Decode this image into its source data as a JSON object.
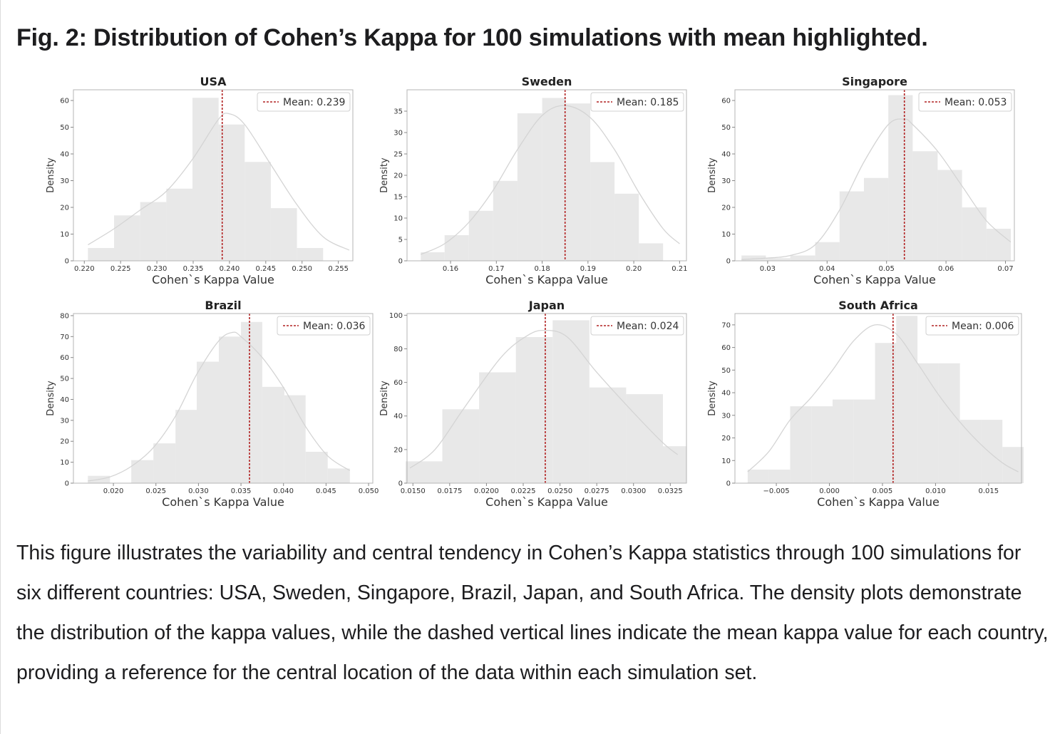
{
  "figure": {
    "title": "Fig. 2: Distribution of Cohen’s Kappa for 100 simulations with mean highlighted.",
    "caption": "This figure illustrates the variability and central tendency in Cohen’s Kappa statistics through 100 simulations for six different countries: USA, Sweden, Singapore, Brazil, Japan, and South Africa. The density plots demonstrate the distribution of the kappa values, while the dashed vertical lines indicate the mean kappa value for each country, providing a reference for the central location of the data within each simulation set."
  },
  "colors": {
    "bar": "#e8e8e8",
    "curve": "#d4d4d4",
    "mean": "#b22222",
    "axis": "#888888",
    "text": "#333333"
  },
  "chart_data": [
    {
      "type": "bar",
      "title": "USA",
      "xlabel": "Cohen`s Kappa Value",
      "ylabel": "Density",
      "xlim": [
        0.2185,
        0.257
      ],
      "ylim": [
        0,
        64
      ],
      "xticks": [
        0.22,
        0.225,
        0.23,
        0.235,
        0.24,
        0.245,
        0.25,
        0.255
      ],
      "xtick_labels": [
        "0.220",
        "0.225",
        "0.230",
        "0.235",
        "0.240",
        "0.245",
        "0.250",
        "0.255"
      ],
      "yticks": [
        0,
        10,
        20,
        30,
        40,
        50,
        60
      ],
      "ytick_labels": [
        "0",
        "10",
        "20",
        "30",
        "40",
        "50",
        "60"
      ],
      "bin_edges": [
        0.2205,
        0.2241,
        0.2277,
        0.2313,
        0.2349,
        0.2385,
        0.2421,
        0.2457,
        0.2493,
        0.2529,
        0.2565
      ],
      "values": [
        4.8,
        17,
        22,
        27,
        61,
        51,
        37,
        19.7,
        4.8,
        0
      ],
      "kde": [
        [
          0.2205,
          6
        ],
        [
          0.2241,
          12
        ],
        [
          0.2277,
          19
        ],
        [
          0.2313,
          26
        ],
        [
          0.2349,
          38
        ],
        [
          0.2385,
          53
        ],
        [
          0.24,
          55
        ],
        [
          0.2421,
          51
        ],
        [
          0.2457,
          36
        ],
        [
          0.2493,
          21
        ],
        [
          0.2529,
          9
        ],
        [
          0.2565,
          4
        ]
      ],
      "mean": 0.239,
      "legend": "Mean: 0.239"
    },
    {
      "type": "bar",
      "title": "Sweden",
      "xlabel": "Cohen`s Kappa Value",
      "ylabel": "Density",
      "xlim": [
        0.1505,
        0.2115
      ],
      "ylim": [
        0,
        40
      ],
      "xticks": [
        0.16,
        0.17,
        0.18,
        0.19,
        0.2,
        0.21
      ],
      "xtick_labels": [
        "0.16",
        "0.17",
        "0.18",
        "0.19",
        "0.20",
        "0.21"
      ],
      "yticks": [
        0,
        5,
        10,
        15,
        20,
        25,
        30,
        35
      ],
      "ytick_labels": [
        "0",
        "5",
        "10",
        "15",
        "20",
        "25",
        "30",
        "35"
      ],
      "bin_edges": [
        0.1535,
        0.1587,
        0.164,
        0.1693,
        0.1746,
        0.18,
        0.1852,
        0.1905,
        0.1958,
        0.2011,
        0.2064
      ],
      "values": [
        2,
        6,
        11.7,
        18.7,
        34.5,
        38.1,
        36.8,
        23.1,
        15.7,
        4.1
      ],
      "kde": [
        [
          0.1535,
          1.5
        ],
        [
          0.1587,
          4
        ],
        [
          0.164,
          9
        ],
        [
          0.1693,
          16.5
        ],
        [
          0.1746,
          26
        ],
        [
          0.18,
          34
        ],
        [
          0.185,
          36.3
        ],
        [
          0.1905,
          33.5
        ],
        [
          0.1958,
          26
        ],
        [
          0.2011,
          16
        ],
        [
          0.2064,
          7.5
        ],
        [
          0.21,
          4
        ]
      ],
      "mean": 0.185,
      "legend": "Mean: 0.185"
    },
    {
      "type": "bar",
      "title": "Singapore",
      "xlabel": "Cohen`s Kappa Value",
      "ylabel": "Density",
      "xlim": [
        0.0245,
        0.0715
      ],
      "ylim": [
        0,
        64
      ],
      "xticks": [
        0.03,
        0.04,
        0.05,
        0.06,
        0.07
      ],
      "xtick_labels": [
        "0.03",
        "0.04",
        "0.05",
        "0.06",
        "0.07"
      ],
      "yticks": [
        0,
        10,
        20,
        30,
        40,
        50,
        60
      ],
      "ytick_labels": [
        "0",
        "10",
        "20",
        "30",
        "40",
        "50",
        "60"
      ],
      "bin_edges": [
        0.0256,
        0.0297,
        0.0338,
        0.038,
        0.0421,
        0.0462,
        0.0503,
        0.0544,
        0.0586,
        0.0627,
        0.0668,
        0.0709
      ],
      "values": [
        2,
        1,
        2,
        7,
        26,
        31,
        62,
        41,
        34,
        20,
        12
      ],
      "kde": [
        [
          0.0256,
          0.5
        ],
        [
          0.0297,
          1
        ],
        [
          0.0338,
          2
        ],
        [
          0.038,
          6
        ],
        [
          0.0421,
          19
        ],
        [
          0.0462,
          37
        ],
        [
          0.0503,
          51
        ],
        [
          0.053,
          53
        ],
        [
          0.0544,
          51
        ],
        [
          0.0586,
          41
        ],
        [
          0.0627,
          28
        ],
        [
          0.0668,
          15
        ],
        [
          0.0709,
          7
        ]
      ],
      "mean": 0.053,
      "legend": "Mean: 0.053"
    },
    {
      "type": "bar",
      "title": "Brazil",
      "xlabel": "Cohen`s Kappa Value",
      "ylabel": "Density",
      "xlim": [
        0.0153,
        0.0505
      ],
      "ylim": [
        0,
        81
      ],
      "xticks": [
        0.02,
        0.025,
        0.03,
        0.035,
        0.04,
        0.045,
        0.05
      ],
      "xtick_labels": [
        "0.020",
        "0.025",
        "0.030",
        "0.035",
        "0.040",
        "0.045",
        "0.050"
      ],
      "yticks": [
        0,
        10,
        20,
        30,
        40,
        50,
        60,
        70,
        80
      ],
      "ytick_labels": [
        "0",
        "10",
        "20",
        "30",
        "40",
        "50",
        "60",
        "70",
        "80"
      ],
      "bin_edges": [
        0.017,
        0.0196,
        0.0221,
        0.0247,
        0.0273,
        0.0298,
        0.0324,
        0.035,
        0.0375,
        0.0401,
        0.0426,
        0.0452,
        0.0478
      ],
      "values": [
        3.5,
        0,
        11,
        19,
        35,
        58,
        70,
        77,
        46,
        42,
        15,
        7
      ],
      "kde": [
        [
          0.017,
          1
        ],
        [
          0.0196,
          3
        ],
        [
          0.0221,
          8
        ],
        [
          0.0247,
          17
        ],
        [
          0.0273,
          32
        ],
        [
          0.0298,
          52
        ],
        [
          0.0324,
          68
        ],
        [
          0.034,
          72
        ],
        [
          0.035,
          70
        ],
        [
          0.0375,
          60
        ],
        [
          0.0401,
          45
        ],
        [
          0.0426,
          27
        ],
        [
          0.0452,
          13
        ],
        [
          0.0478,
          6
        ]
      ],
      "mean": 0.036,
      "legend": "Mean: 0.036"
    },
    {
      "type": "bar",
      "title": "Japan",
      "xlabel": "Cohen`s Kappa Value",
      "ylabel": "Density",
      "xlim": [
        0.0146,
        0.0336
      ],
      "ylim": [
        0,
        101
      ],
      "xticks": [
        0.015,
        0.0175,
        0.02,
        0.0225,
        0.025,
        0.0275,
        0.03,
        0.0325
      ],
      "xtick_labels": [
        "0.0150",
        "0.0175",
        "0.0200",
        "0.0225",
        "0.0250",
        "0.0275",
        "0.0300",
        "0.0325"
      ],
      "yticks": [
        0,
        20,
        40,
        60,
        80,
        100
      ],
      "ytick_labels": [
        "0",
        "20",
        "40",
        "60",
        "80",
        "100"
      ],
      "bin_edges": [
        0.0145,
        0.017,
        0.0195,
        0.022,
        0.0245,
        0.027,
        0.0295,
        0.032,
        0.0336
      ],
      "values": [
        13,
        44,
        66,
        87,
        97,
        57,
        53,
        22
      ],
      "kde": [
        [
          0.0148,
          9
        ],
        [
          0.0165,
          20
        ],
        [
          0.0185,
          45
        ],
        [
          0.021,
          75
        ],
        [
          0.0228,
          88
        ],
        [
          0.024,
          91
        ],
        [
          0.0255,
          87
        ],
        [
          0.0275,
          66
        ],
        [
          0.03,
          42
        ],
        [
          0.032,
          24
        ],
        [
          0.033,
          17
        ]
      ],
      "mean": 0.024,
      "legend": "Mean: 0.024"
    },
    {
      "type": "bar",
      "title": "South Africa",
      "xlabel": "Cohen`s Kappa Value",
      "ylabel": "Density",
      "xlim": [
        -0.0089,
        0.0181
      ],
      "ylim": [
        0,
        75
      ],
      "xticks": [
        -0.005,
        0.0,
        0.005,
        0.01,
        0.015
      ],
      "xtick_labels": [
        "−0.005",
        "0.000",
        "0.005",
        "0.010",
        "0.015"
      ],
      "yticks": [
        0,
        10,
        20,
        30,
        40,
        50,
        60,
        70
      ],
      "ytick_labels": [
        "0",
        "10",
        "20",
        "30",
        "40",
        "50",
        "60",
        "70"
      ],
      "bin_edges": [
        -0.0077,
        -0.0057,
        -0.0037,
        -0.0017,
        0.0003,
        0.0023,
        0.0043,
        0.0063,
        0.0083,
        0.0103,
        0.0123,
        0.0143,
        0.0163,
        0.0183
      ],
      "values": [
        6,
        6,
        34,
        34,
        37,
        37,
        62,
        74,
        53,
        53,
        28,
        28,
        16
      ],
      "kde": [
        [
          -0.0077,
          5
        ],
        [
          -0.0057,
          14
        ],
        [
          -0.0037,
          28
        ],
        [
          -0.0017,
          38
        ],
        [
          0.0003,
          50
        ],
        [
          0.0023,
          63
        ],
        [
          0.0043,
          70
        ],
        [
          0.0063,
          66
        ],
        [
          0.0083,
          53
        ],
        [
          0.0103,
          39
        ],
        [
          0.0123,
          27
        ],
        [
          0.0143,
          17
        ],
        [
          0.0163,
          9
        ],
        [
          0.0178,
          5
        ]
      ],
      "mean": 0.006,
      "legend": "Mean: 0.006"
    }
  ]
}
